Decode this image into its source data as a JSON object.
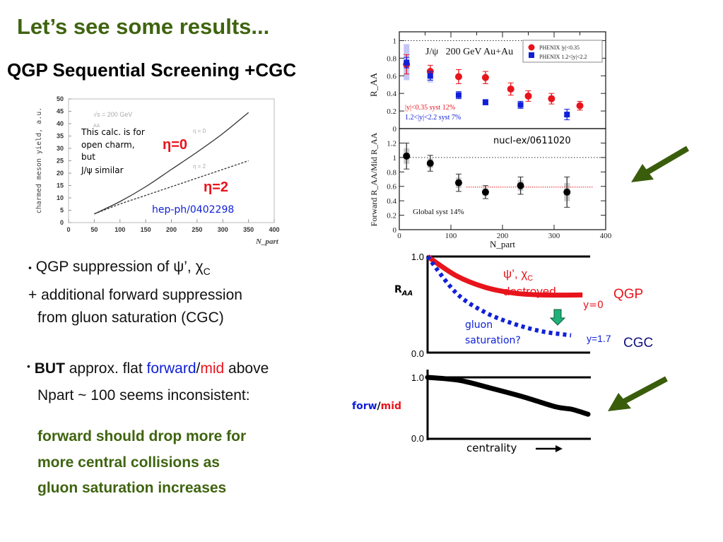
{
  "slide": {
    "title": "Let’s see some results...",
    "subtitle": "QGP Sequential Screening +CGC",
    "colors": {
      "title_green": "#3f6410",
      "red": "#e8141c",
      "blue": "#1020d8",
      "navy": "#101080",
      "arrow_green": "#3a5d0c",
      "teal_arrow": "#22b07a"
    }
  },
  "bullets": {
    "b1_dot": "•",
    "b1_text": "QGP suppression of ψ’, χ",
    "b1_sub": "C",
    "b1_line2": "+ additional forward suppression",
    "b1_line3": "from gluon saturation (CGC)",
    "b2_dot": "•",
    "b2_bold": "BUT",
    "b2_text1": " approx. flat ",
    "b2_forward": "forward",
    "b2_slash": "/",
    "b2_mid": "mid",
    "b2_text2": " above",
    "b2_line2": "Npart ~ 100 seems inconsistent:",
    "green_lines": [
      "forward should drop more for",
      "more central collisions as",
      "gluon saturation increases"
    ]
  },
  "chart_data": [
    {
      "type": "line",
      "id": "charm-yield",
      "title": "",
      "xlabel": "N_part",
      "ylabel": "charmed meson yield, a.u.",
      "xlim": [
        0,
        400
      ],
      "ylim": [
        0,
        50
      ],
      "xticks": [
        0,
        50,
        100,
        150,
        200,
        250,
        300,
        350,
        400
      ],
      "yticks": [
        0,
        5,
        10,
        15,
        20,
        25,
        30,
        35,
        40,
        45,
        50
      ],
      "series": [
        {
          "name": "η = 0",
          "style": "solid",
          "x": [
            50,
            100,
            150,
            200,
            250,
            300,
            350
          ],
          "y": [
            3.5,
            8.5,
            14.5,
            21.5,
            28.5,
            36,
            44.5
          ]
        },
        {
          "name": "η = 2",
          "style": "dashed",
          "x": [
            50,
            100,
            150,
            200,
            250,
            300,
            350
          ],
          "y": [
            3.5,
            7.5,
            11,
            14.5,
            18,
            21.5,
            25
          ]
        }
      ],
      "annotations": {
        "sqrt_s": "√s = 200 GeV",
        "aa": "AA",
        "eta0_small": "η = 0",
        "eta2_small": "η = 2",
        "note_lines": [
          "This calc. is for",
          "open charm,",
          "but",
          "J/ψ similar"
        ],
        "eta0_big": "η=0",
        "eta2_big": "η=2",
        "ref": "hep-ph/0402298"
      }
    },
    {
      "type": "scatter",
      "id": "phenix-raa",
      "title": "J/ψ   200 GeV Au+Au",
      "ylabel": "R_AA",
      "xlim": [
        0,
        400
      ],
      "ylim": [
        0,
        1.1
      ],
      "yticks": [
        0,
        0.2,
        0.4,
        0.6,
        0.8,
        1
      ],
      "reference_line": 1,
      "legend": {
        "position": "top-right",
        "entries": [
          "PHENIX |y|<0.35",
          "PHENIX 1.2<|y|<2.2"
        ]
      },
      "series": [
        {
          "name": "PHENIX |y|<0.35",
          "marker": "circle",
          "color": "#e8141c",
          "x": [
            14,
            60,
            115,
            167,
            216,
            250,
            295,
            350
          ],
          "y": [
            0.73,
            0.65,
            0.59,
            0.58,
            0.45,
            0.37,
            0.34,
            0.26
          ],
          "err": [
            0.11,
            0.07,
            0.08,
            0.07,
            0.07,
            0.06,
            0.06,
            0.05
          ]
        },
        {
          "name": "PHENIX 1.2<|y|<2.2",
          "marker": "square",
          "color": "#1020d8",
          "x": [
            14,
            60,
            115,
            167,
            235,
            325
          ],
          "y": [
            0.75,
            0.6,
            0.38,
            0.3,
            0.27,
            0.16
          ],
          "err": [
            0.06,
            0.05,
            0.04,
            0.03,
            0.04,
            0.06
          ]
        }
      ],
      "annotations": {
        "syst1": "|y|<0.35 syst 12%",
        "syst2": "1.2<|y|<2.2 syst 7%"
      }
    },
    {
      "type": "scatter",
      "id": "forward-mid-ratio",
      "title": "",
      "xlabel": "N_part",
      "ylabel": "Forward R_AA/Mid R_AA",
      "xlim": [
        0,
        400
      ],
      "ylim": [
        0,
        1.4
      ],
      "xticks": [
        0,
        100,
        200,
        300,
        400
      ],
      "yticks": [
        0,
        0.2,
        0.4,
        0.6,
        0.8,
        1,
        1.2
      ],
      "reference_line": 1,
      "fit_line": {
        "y": 0.59,
        "x_range": [
          130,
          375
        ],
        "color": "#e8141c"
      },
      "series": [
        {
          "name": "Forward/Mid",
          "marker": "circle",
          "color": "#000000",
          "x": [
            14,
            60,
            115,
            167,
            235,
            325
          ],
          "y": [
            1.02,
            0.92,
            0.65,
            0.52,
            0.61,
            0.52
          ],
          "err": [
            0.18,
            0.11,
            0.12,
            0.09,
            0.12,
            0.21
          ]
        }
      ],
      "annotations": {
        "global_syst": "Global syst 14%",
        "ref": "nucl-ex/0611020"
      }
    },
    {
      "type": "line",
      "id": "raa-sketch",
      "ylabel": "R_AA",
      "ylim": [
        0,
        1
      ],
      "yticks": [
        "0.0",
        "1.0"
      ],
      "series": [
        {
          "name": "y=0",
          "label": "QGP",
          "color": "#e8141c",
          "style": "solid",
          "x": [
            0,
            0.2,
            0.4,
            0.6,
            0.8,
            1
          ],
          "y": [
            1.0,
            0.8,
            0.68,
            0.62,
            0.6,
            0.6
          ]
        },
        {
          "name": "y=1.7",
          "label": "CGC",
          "color": "#1020d8",
          "style": "dotted",
          "x": [
            0,
            0.2,
            0.4,
            0.6,
            0.8,
            1
          ],
          "y": [
            1.0,
            0.62,
            0.42,
            0.3,
            0.22,
            0.18
          ]
        }
      ],
      "annotations": {
        "psi": "ψ’, χ",
        "psi_sub": "C",
        "destroyed": "destroyed",
        "y0": "y=0",
        "qgp": "QGP",
        "gluon1": "gluon",
        "gluon2": "saturation?",
        "y17": "y=1.7",
        "cgc": "CGC"
      }
    },
    {
      "type": "line",
      "id": "forw-mid-sketch",
      "xlabel": "centrality",
      "ylabel_forw": "forw",
      "ylabel_slash": "/",
      "ylabel_mid": "mid",
      "ylim": [
        0,
        1
      ],
      "yticks": [
        "0.0",
        "1.0"
      ],
      "series": [
        {
          "name": "forw/mid",
          "color": "#000000",
          "x": [
            0,
            0.2,
            0.4,
            0.6,
            0.8,
            0.9,
            1
          ],
          "y": [
            1.0,
            0.95,
            0.82,
            0.68,
            0.52,
            0.48,
            0.4
          ]
        }
      ]
    }
  ]
}
